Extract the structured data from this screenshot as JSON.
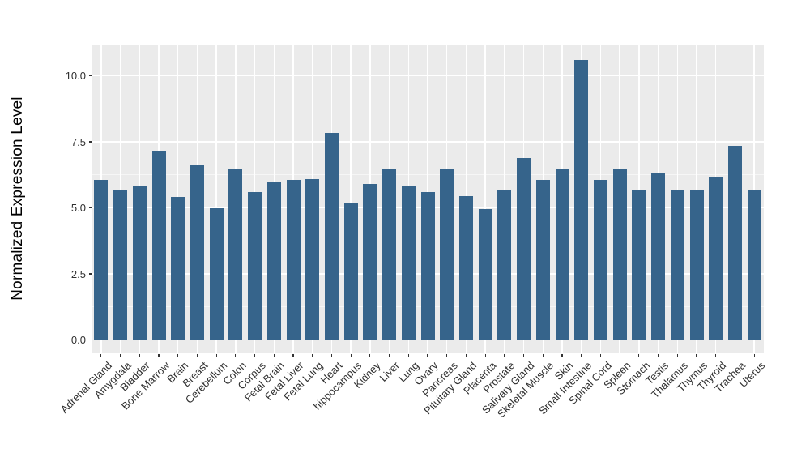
{
  "chart_data": {
    "type": "bar",
    "title": "",
    "xlabel": "",
    "ylabel": "Normalized Expression Level",
    "categories": [
      "Adrenal Gland",
      "Amygdala",
      "Bladder",
      "Bone Marrow",
      "Brain",
      "Breast",
      "Cerebellum",
      "Colon",
      "Corpus",
      "Fetal Brain",
      "Fetal Liver",
      "Fetal Lung",
      "Heart",
      "hippocampus",
      "Kidney",
      "Liver",
      "Lung",
      "Ovary",
      "Pancreas",
      "Pituitary Gland",
      "Placenta",
      "Prostate",
      "Salivary Gland",
      "Skeletal Muscle",
      "Skin",
      "Small Intestine",
      "Spinal Cord",
      "Spleen",
      "Stomach",
      "Testis",
      "Thalamus",
      "Thymus",
      "Thyroid",
      "Trachea",
      "Uterus"
    ],
    "values": [
      6.05,
      5.7,
      5.8,
      7.15,
      5.4,
      6.6,
      5.0,
      6.5,
      5.6,
      6.0,
      6.05,
      6.1,
      7.85,
      5.2,
      5.9,
      6.45,
      5.85,
      5.6,
      6.5,
      5.45,
      4.95,
      5.7,
      6.9,
      6.05,
      6.45,
      10.6,
      6.05,
      6.45,
      5.65,
      6.3,
      5.7,
      5.7,
      6.15,
      7.35,
      5.7
    ],
    "yticks": [
      0.0,
      2.5,
      5.0,
      7.5,
      10.0
    ],
    "ytick_labels": [
      "0.0",
      "2.5",
      "5.0",
      "7.5",
      "10.0"
    ],
    "yticks_minor": [
      1.25,
      3.75,
      6.25,
      8.75
    ],
    "ylim": [
      -0.45,
      11.15
    ],
    "grid": true,
    "legend_position": "none",
    "colors": {
      "bar": "#36648B",
      "panel_background": "#EBEBEB",
      "grid_major": "#FFFFFF",
      "grid_minor": "#F6F6F6",
      "tick_text": "#303030",
      "axis_title_text": "#000000",
      "figure_background": "#FFFFFF"
    }
  }
}
